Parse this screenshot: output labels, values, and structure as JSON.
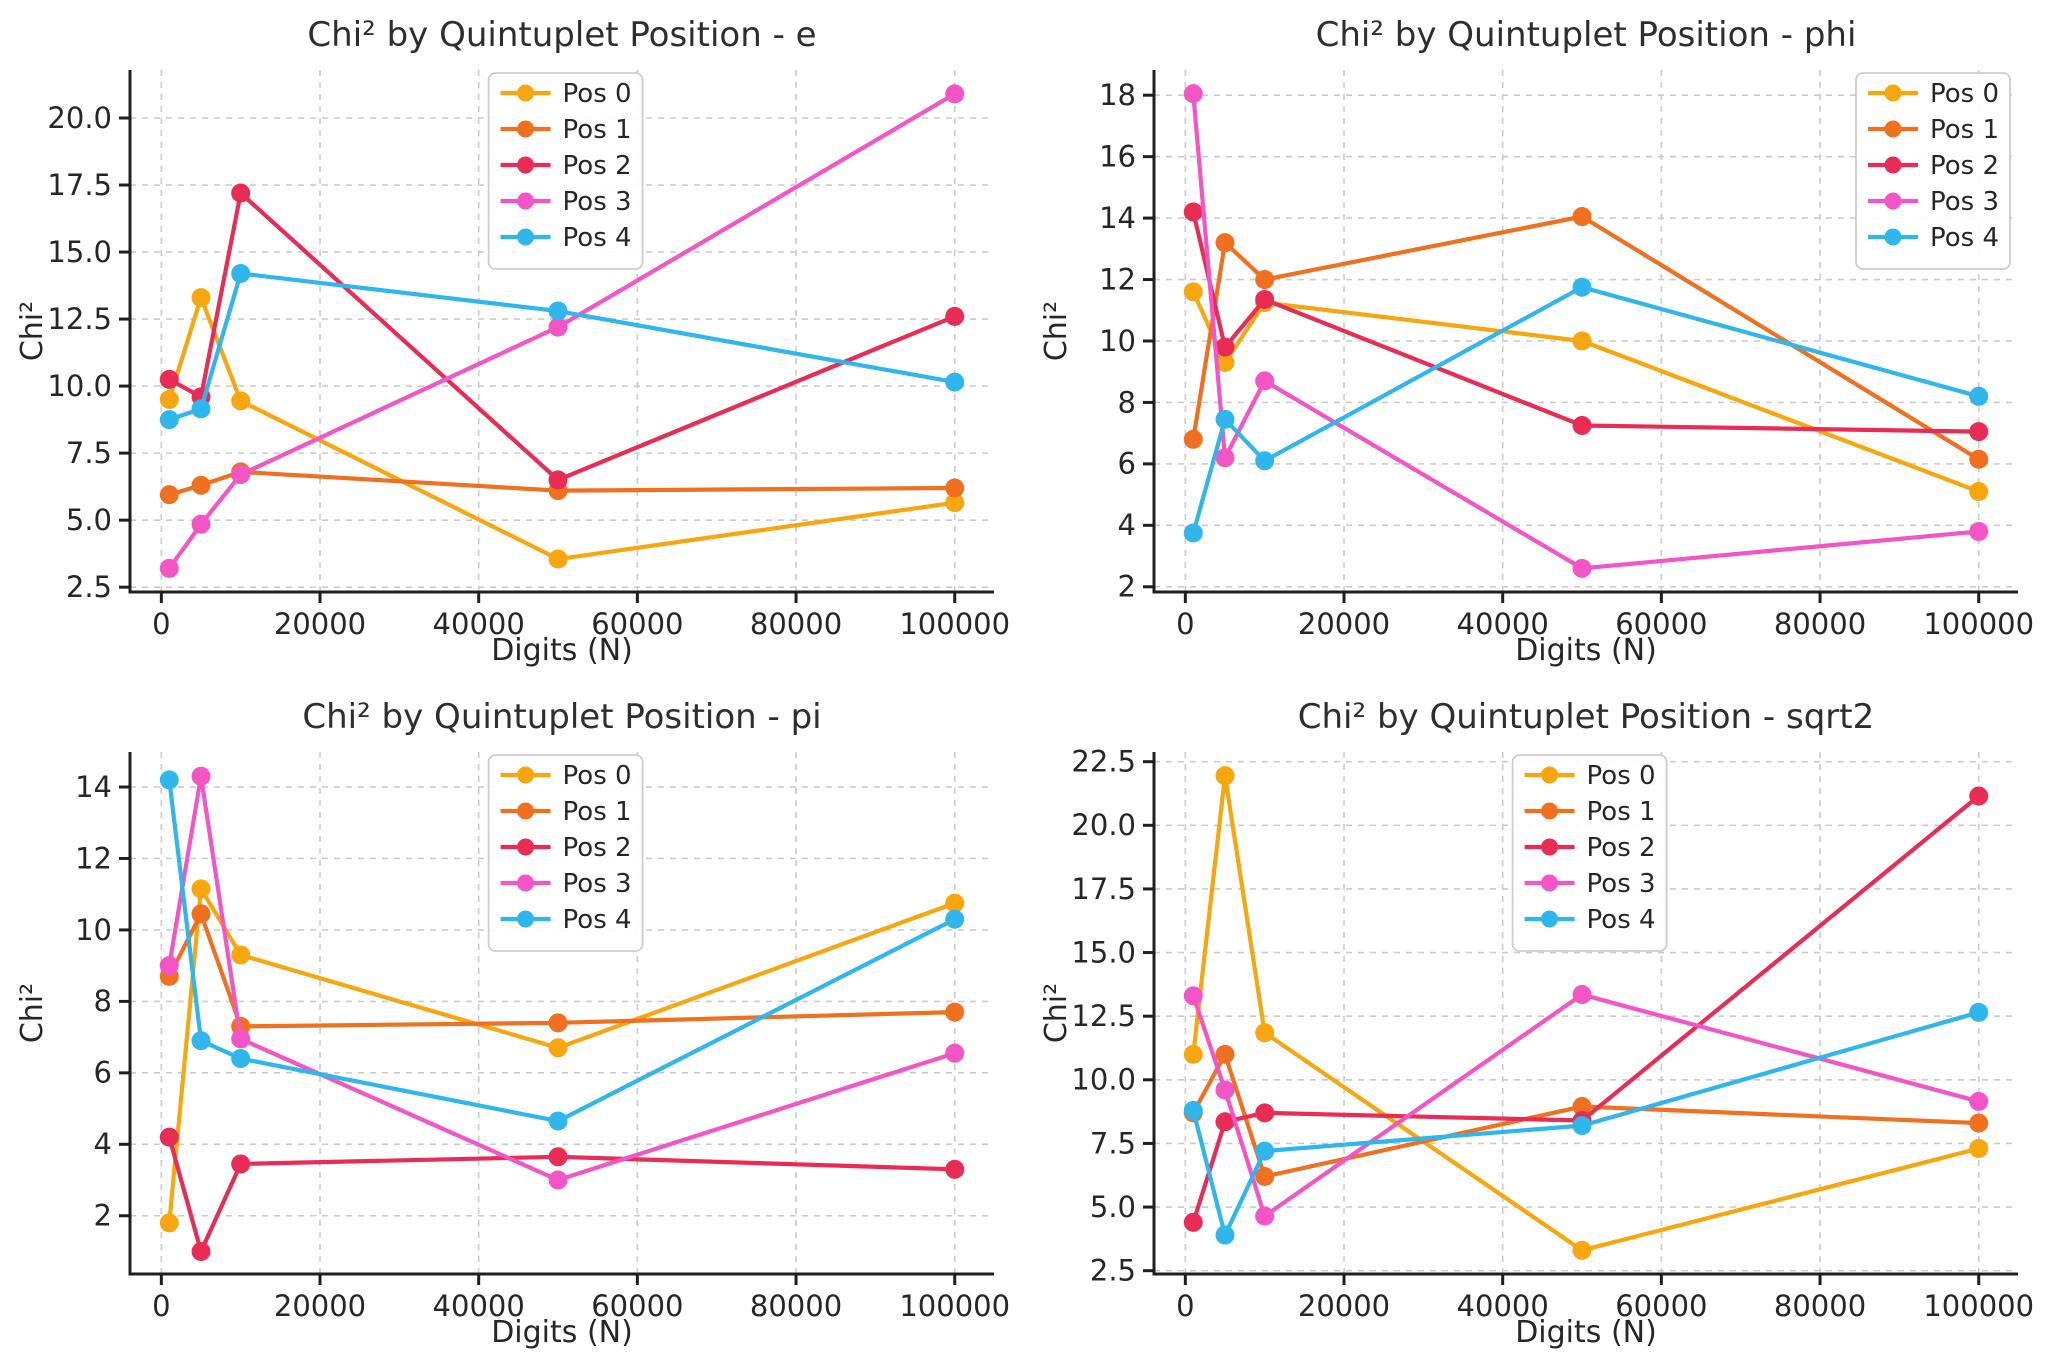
{
  "figure": {
    "background": "#ffffff",
    "grid_color": "#cbcbcb",
    "axis_color": "#1f1f1f",
    "tick_label_color": "#262626",
    "title_color": "#2e2e2e",
    "legend_border_color": "#cccccc",
    "legend_background": "#ffffff"
  },
  "chart_data": [
    {
      "id": "e",
      "type": "line",
      "title": "Chi² by Quintuplet Position - e",
      "xlabel": "Digits (N)",
      "ylabel": "Chi²",
      "x": [
        1000,
        5000,
        10000,
        50000,
        100000
      ],
      "xlim": [
        -3950,
        104950
      ],
      "ylim": [
        2.32,
        21.79
      ],
      "xticks": [
        0,
        20000,
        40000,
        60000,
        80000,
        100000
      ],
      "xticklabels": [
        "0",
        "20000",
        "40000",
        "60000",
        "80000",
        "100000"
      ],
      "yticks": [
        2.5,
        5.0,
        7.5,
        10.0,
        12.5,
        15.0,
        17.5,
        20.0
      ],
      "yticklabels": [
        "2.5",
        "5.0",
        "7.5",
        "10.0",
        "12.5",
        "15.0",
        "17.5",
        "20.0"
      ],
      "grid": true,
      "legend_position": "upper-center",
      "series": [
        {
          "name": "Pos 0",
          "color": "#F8A60D",
          "values": [
            9.5,
            13.3,
            9.45,
            3.55,
            5.65
          ]
        },
        {
          "name": "Pos 1",
          "color": "#F07020",
          "values": [
            5.95,
            6.3,
            6.8,
            6.1,
            6.2
          ]
        },
        {
          "name": "Pos 2",
          "color": "#E82C55",
          "values": [
            10.25,
            9.6,
            17.2,
            6.5,
            12.6
          ]
        },
        {
          "name": "Pos 3",
          "color": "#F455C6",
          "values": [
            3.2,
            4.85,
            6.7,
            12.2,
            20.9
          ]
        },
        {
          "name": "Pos 4",
          "color": "#2EB6ED",
          "values": [
            8.75,
            9.15,
            14.2,
            12.8,
            10.15
          ]
        }
      ]
    },
    {
      "id": "phi",
      "type": "line",
      "title": "Chi² by Quintuplet Position - phi",
      "xlabel": "Digits (N)",
      "ylabel": "Chi²",
      "x": [
        1000,
        5000,
        10000,
        50000,
        100000
      ],
      "xlim": [
        -3950,
        104950
      ],
      "ylim": [
        1.83,
        18.82
      ],
      "xticks": [
        0,
        20000,
        40000,
        60000,
        80000,
        100000
      ],
      "xticklabels": [
        "0",
        "20000",
        "40000",
        "60000",
        "80000",
        "100000"
      ],
      "yticks": [
        2,
        4,
        6,
        8,
        10,
        12,
        14,
        16,
        18
      ],
      "yticklabels": [
        "2",
        "4",
        "6",
        "8",
        "10",
        "12",
        "14",
        "16",
        "18"
      ],
      "grid": true,
      "legend_position": "upper-right",
      "series": [
        {
          "name": "Pos 0",
          "color": "#F8A60D",
          "values": [
            11.6,
            9.3,
            11.25,
            10.0,
            5.1
          ]
        },
        {
          "name": "Pos 1",
          "color": "#F07020",
          "values": [
            6.8,
            13.2,
            12.0,
            14.05,
            6.15
          ]
        },
        {
          "name": "Pos 2",
          "color": "#E82C55",
          "values": [
            14.2,
            9.8,
            11.35,
            7.25,
            7.05
          ]
        },
        {
          "name": "Pos 3",
          "color": "#F455C6",
          "values": [
            18.05,
            6.2,
            8.7,
            2.6,
            3.8
          ]
        },
        {
          "name": "Pos 4",
          "color": "#2EB6ED",
          "values": [
            3.75,
            7.45,
            6.1,
            11.75,
            8.2
          ]
        }
      ]
    },
    {
      "id": "pi",
      "type": "line",
      "title": "Chi² by Quintuplet Position - pi",
      "xlabel": "Digits (N)",
      "ylabel": "Chi²",
      "x": [
        1000,
        5000,
        10000,
        50000,
        100000
      ],
      "xlim": [
        -3950,
        104950
      ],
      "ylim": [
        0.37,
        14.98
      ],
      "xticks": [
        0,
        20000,
        40000,
        60000,
        80000,
        100000
      ],
      "xticklabels": [
        "0",
        "20000",
        "40000",
        "60000",
        "80000",
        "100000"
      ],
      "yticks": [
        2,
        4,
        6,
        8,
        10,
        12,
        14
      ],
      "yticklabels": [
        "2",
        "4",
        "6",
        "8",
        "10",
        "12",
        "14"
      ],
      "grid": true,
      "legend_position": "upper-center",
      "series": [
        {
          "name": "Pos 0",
          "color": "#F8A60D",
          "values": [
            1.8,
            11.15,
            9.3,
            6.7,
            10.75
          ]
        },
        {
          "name": "Pos 1",
          "color": "#F07020",
          "values": [
            8.7,
            10.45,
            7.3,
            7.4,
            7.7
          ]
        },
        {
          "name": "Pos 2",
          "color": "#E82C55",
          "values": [
            4.2,
            1.0,
            3.45,
            3.65,
            3.3
          ]
        },
        {
          "name": "Pos 3",
          "color": "#F455C6",
          "values": [
            9.0,
            14.3,
            6.95,
            3.0,
            6.55
          ]
        },
        {
          "name": "Pos 4",
          "color": "#2EB6ED",
          "values": [
            14.2,
            6.9,
            6.4,
            4.65,
            10.3
          ]
        }
      ]
    },
    {
      "id": "sqrt2",
      "type": "line",
      "title": "Chi² by Quintuplet Position - sqrt2",
      "xlabel": "Digits (N)",
      "ylabel": "Chi²",
      "x": [
        1000,
        5000,
        10000,
        50000,
        100000
      ],
      "xlim": [
        -3950,
        104950
      ],
      "ylim": [
        2.37,
        22.88
      ],
      "xticks": [
        0,
        20000,
        40000,
        60000,
        80000,
        100000
      ],
      "xticklabels": [
        "0",
        "20000",
        "40000",
        "60000",
        "80000",
        "100000"
      ],
      "yticks": [
        2.5,
        5.0,
        7.5,
        10.0,
        12.5,
        15.0,
        17.5,
        20.0,
        22.5
      ],
      "yticklabels": [
        "2.5",
        "5.0",
        "7.5",
        "10.0",
        "12.5",
        "15.0",
        "17.5",
        "20.0",
        "22.5"
      ],
      "grid": true,
      "legend_position": "upper-center",
      "series": [
        {
          "name": "Pos 0",
          "color": "#F8A60D",
          "values": [
            11.0,
            21.95,
            11.85,
            3.3,
            7.3
          ]
        },
        {
          "name": "Pos 1",
          "color": "#F07020",
          "values": [
            8.7,
            11.0,
            6.2,
            8.95,
            8.3
          ]
        },
        {
          "name": "Pos 2",
          "color": "#E82C55",
          "values": [
            4.4,
            8.35,
            8.7,
            8.4,
            21.15
          ]
        },
        {
          "name": "Pos 3",
          "color": "#F455C6",
          "values": [
            13.3,
            9.6,
            4.65,
            13.35,
            9.15
          ]
        },
        {
          "name": "Pos 4",
          "color": "#2EB6ED",
          "values": [
            8.8,
            3.9,
            7.2,
            8.2,
            12.65
          ]
        }
      ]
    }
  ]
}
